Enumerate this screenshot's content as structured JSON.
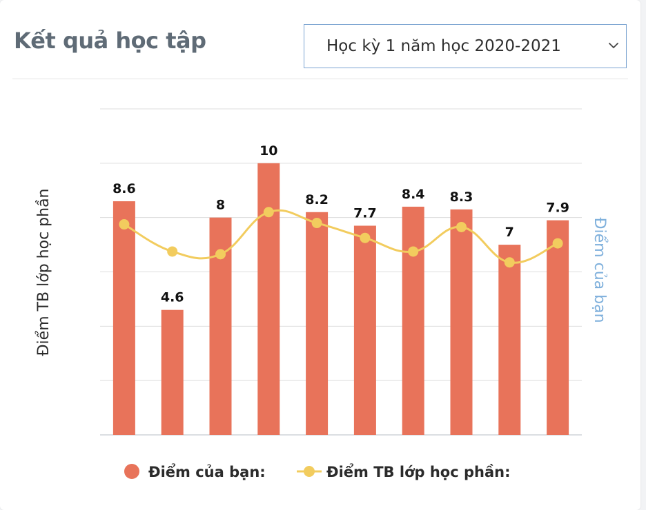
{
  "header": {
    "title": "Kết quả học tập",
    "semester_select": {
      "value": "Học kỳ 1 năm học 2020-2021"
    }
  },
  "colors": {
    "bar": "#e8735a",
    "line": "#f2cc5e",
    "right_axis_label": "#7fb0dc",
    "grid": "#dcdcdc"
  },
  "chart_data": {
    "type": "bar",
    "categories": [
      "",
      "",
      "",
      "",
      "",
      "",
      "",
      "",
      "",
      ""
    ],
    "series": [
      {
        "name": "Điểm của bạn:",
        "type": "bar",
        "axis": "right",
        "values": [
          8.6,
          4.6,
          8,
          10,
          8.2,
          7.7,
          8.4,
          8.3,
          7,
          7.9
        ]
      },
      {
        "name": "Điểm TB lớp học phần:",
        "type": "line",
        "smooth": true,
        "axis": "left",
        "values": [
          7.75,
          6.75,
          6.65,
          8.2,
          7.8,
          7.25,
          6.75,
          7.65,
          6.35,
          7.05
        ]
      }
    ],
    "ylabel_left": "Điểm TB lớp học phần",
    "ylabel_right": "Điểm của bạn",
    "ylim": [
      0,
      12
    ],
    "grid": true,
    "legend": "bottom"
  }
}
